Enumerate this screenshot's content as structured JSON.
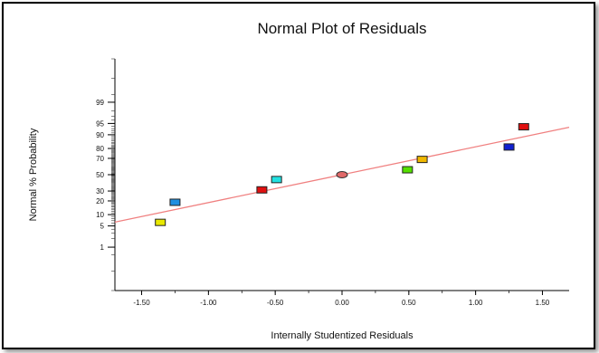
{
  "chart_data": {
    "type": "scatter",
    "title": "Normal Plot of Residuals",
    "xlabel": "Internally Studentized Residuals",
    "ylabel": "Normal % Probability",
    "xlim": [
      -1.7,
      1.7
    ],
    "x_ticks": [
      -1.5,
      -1.0,
      -0.5,
      0.0,
      0.5,
      1.0,
      1.5
    ],
    "x_tick_labels": [
      "-1.50",
      "-1.00",
      "-0.50",
      "0.00",
      "0.50",
      "1.00",
      "1.50"
    ],
    "y_scale": "normal-probability",
    "y_ticks": [
      1,
      5,
      10,
      20,
      30,
      50,
      70,
      80,
      90,
      95,
      99
    ],
    "y_tick_labels": [
      "1",
      "5",
      "10",
      "20",
      "30",
      "50",
      "70",
      "80",
      "90",
      "95",
      "99"
    ],
    "grid": false,
    "points": [
      {
        "x": -1.36,
        "y": 6.3,
        "color": "#e8e800"
      },
      {
        "x": -1.25,
        "y": 18.8,
        "color": "#1e8fe0"
      },
      {
        "x": -0.6,
        "y": 31.3,
        "color": "#e01010"
      },
      {
        "x": -0.49,
        "y": 43.8,
        "color": "#22e0e0"
      },
      {
        "x": 0.0,
        "y": 50.0,
        "color": "#e06868"
      },
      {
        "x": 0.49,
        "y": 56.3,
        "color": "#55e000"
      },
      {
        "x": 0.6,
        "y": 68.8,
        "color": "#f0b800"
      },
      {
        "x": 1.25,
        "y": 81.3,
        "color": "#1020d0"
      },
      {
        "x": 1.36,
        "y": 93.8,
        "color": "#e01010"
      }
    ],
    "fit_line": {
      "color": "#f08080",
      "x": [
        -1.7,
        1.7
      ],
      "y": [
        6.4,
        93.6
      ]
    }
  }
}
